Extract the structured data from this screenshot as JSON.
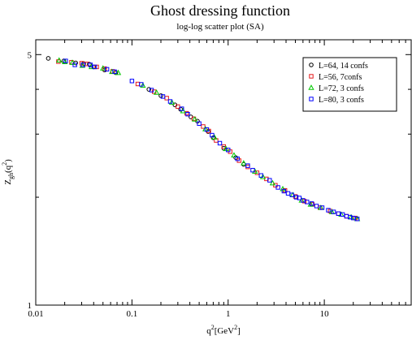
{
  "chart_data": {
    "type": "scatter",
    "title": "Ghost dressing function",
    "subtitle": "log-log scatter plot (SA)",
    "xlabel": {
      "base": "q",
      "sup": "2",
      "rest": "[GeV",
      "sup2": "2",
      "end": "]"
    },
    "ylabel": {
      "base": "Z",
      "sub": "gh",
      "rest": "(q",
      "sup": "2",
      "end": ")"
    },
    "x_scale": "log",
    "y_scale": "log",
    "xlim": [
      0.01,
      80
    ],
    "ylim": [
      1,
      5.5
    ],
    "x_ticks": [
      {
        "value": 0.01,
        "label": "0.01"
      },
      {
        "value": 0.1,
        "label": "0.1"
      },
      {
        "value": 1,
        "label": "1"
      },
      {
        "value": 10,
        "label": "10"
      }
    ],
    "y_ticks": [
      {
        "value": 1,
        "label": "1"
      },
      {
        "value": 5,
        "label": "5"
      }
    ],
    "grid": false,
    "legend_position": "top-right",
    "series": [
      {
        "name": "L=64, 14 confs",
        "marker": "circle",
        "color": "#000000",
        "points": [
          [
            0.0135,
            4.88
          ],
          [
            0.0196,
            4.8
          ],
          [
            0.026,
            4.74
          ],
          [
            0.0315,
            4.72
          ],
          [
            0.036,
            4.7
          ],
          [
            0.04,
            4.62
          ],
          [
            0.052,
            4.53
          ],
          [
            0.068,
            4.45
          ],
          [
            0.15,
            4.0
          ],
          [
            0.2,
            3.84
          ],
          [
            0.28,
            3.62
          ],
          [
            0.32,
            3.52
          ],
          [
            0.41,
            3.35
          ],
          [
            0.48,
            3.26
          ],
          [
            0.62,
            3.05
          ],
          [
            0.7,
            2.93
          ],
          [
            0.9,
            2.74
          ],
          [
            1.2,
            2.58
          ],
          [
            1.45,
            2.47
          ]
        ]
      },
      {
        "name": "L=56, 7confs",
        "marker": "square",
        "color": "#e41a1c",
        "points": [
          [
            0.0172,
            4.78
          ],
          [
            0.0235,
            4.76
          ],
          [
            0.03,
            4.73
          ],
          [
            0.034,
            4.71
          ],
          [
            0.043,
            4.62
          ],
          [
            0.052,
            4.57
          ],
          [
            0.063,
            4.49
          ],
          [
            0.115,
            4.14
          ],
          [
            0.17,
            3.94
          ],
          [
            0.23,
            3.78
          ],
          [
            0.3,
            3.58
          ],
          [
            0.37,
            3.43
          ],
          [
            0.44,
            3.31
          ],
          [
            0.55,
            3.15
          ],
          [
            0.63,
            3.06
          ],
          [
            0.75,
            2.88
          ],
          [
            0.9,
            2.77
          ],
          [
            1.05,
            2.68
          ],
          [
            1.3,
            2.53
          ],
          [
            1.6,
            2.43
          ],
          [
            2.0,
            2.34
          ],
          [
            2.5,
            2.25
          ],
          [
            3.1,
            2.16
          ],
          [
            3.9,
            2.09
          ],
          [
            5.0,
            2.01
          ],
          [
            6.2,
            1.95
          ],
          [
            7.5,
            1.91
          ],
          [
            9.0,
            1.87
          ],
          [
            11.5,
            1.83
          ],
          [
            14,
            1.8
          ],
          [
            17,
            1.77
          ],
          [
            21,
            1.75
          ]
        ]
      },
      {
        "name": "L=72, 3 confs",
        "marker": "triangle",
        "color": "#00c800",
        "points": [
          [
            0.0175,
            4.82
          ],
          [
            0.02,
            4.77
          ],
          [
            0.024,
            4.75
          ],
          [
            0.0305,
            4.66
          ],
          [
            0.038,
            4.62
          ],
          [
            0.05,
            4.58
          ],
          [
            0.062,
            4.48
          ],
          [
            0.072,
            4.45
          ],
          [
            0.13,
            4.1
          ],
          [
            0.18,
            3.92
          ],
          [
            0.26,
            3.68
          ],
          [
            0.34,
            3.48
          ],
          [
            0.45,
            3.3
          ],
          [
            0.58,
            3.1
          ],
          [
            0.72,
            2.94
          ],
          [
            0.95,
            2.73
          ],
          [
            1.15,
            2.62
          ],
          [
            1.45,
            2.49
          ],
          [
            1.9,
            2.36
          ],
          [
            2.3,
            2.28
          ],
          [
            2.9,
            2.19
          ],
          [
            3.7,
            2.11
          ],
          [
            4.7,
            2.03
          ],
          [
            5.8,
            1.96
          ],
          [
            7.2,
            1.91
          ],
          [
            9.2,
            1.87
          ],
          [
            12,
            1.82
          ],
          [
            15,
            1.79
          ],
          [
            19,
            1.76
          ],
          [
            22,
            1.74
          ]
        ]
      },
      {
        "name": "L=80, 3 confs",
        "marker": "square",
        "color": "#0000ff",
        "points": [
          [
            0.0205,
            4.8
          ],
          [
            0.0255,
            4.68
          ],
          [
            0.031,
            4.68
          ],
          [
            0.037,
            4.68
          ],
          [
            0.041,
            4.62
          ],
          [
            0.055,
            4.55
          ],
          [
            0.066,
            4.48
          ],
          [
            0.1,
            4.22
          ],
          [
            0.125,
            4.13
          ],
          [
            0.16,
            3.98
          ],
          [
            0.21,
            3.82
          ],
          [
            0.25,
            3.7
          ],
          [
            0.33,
            3.53
          ],
          [
            0.38,
            3.41
          ],
          [
            0.5,
            3.21
          ],
          [
            0.6,
            3.09
          ],
          [
            0.68,
            2.98
          ],
          [
            0.82,
            2.83
          ],
          [
            1.0,
            2.71
          ],
          [
            1.25,
            2.56
          ],
          [
            1.6,
            2.45
          ],
          [
            1.8,
            2.38
          ],
          [
            2.2,
            2.3
          ],
          [
            2.7,
            2.23
          ],
          [
            3.3,
            2.13
          ],
          [
            3.8,
            2.08
          ],
          [
            4.2,
            2.05
          ],
          [
            4.6,
            2.03
          ],
          [
            5.1,
            2.0
          ],
          [
            5.5,
            1.99
          ],
          [
            6.0,
            1.96
          ],
          [
            6.6,
            1.94
          ],
          [
            7.4,
            1.92
          ],
          [
            8.3,
            1.89
          ],
          [
            9.5,
            1.87
          ],
          [
            11,
            1.84
          ],
          [
            12.5,
            1.82
          ],
          [
            14,
            1.8
          ],
          [
            15.5,
            1.79
          ],
          [
            17,
            1.77
          ],
          [
            18.5,
            1.76
          ],
          [
            20,
            1.75
          ],
          [
            22,
            1.74
          ]
        ]
      }
    ]
  }
}
